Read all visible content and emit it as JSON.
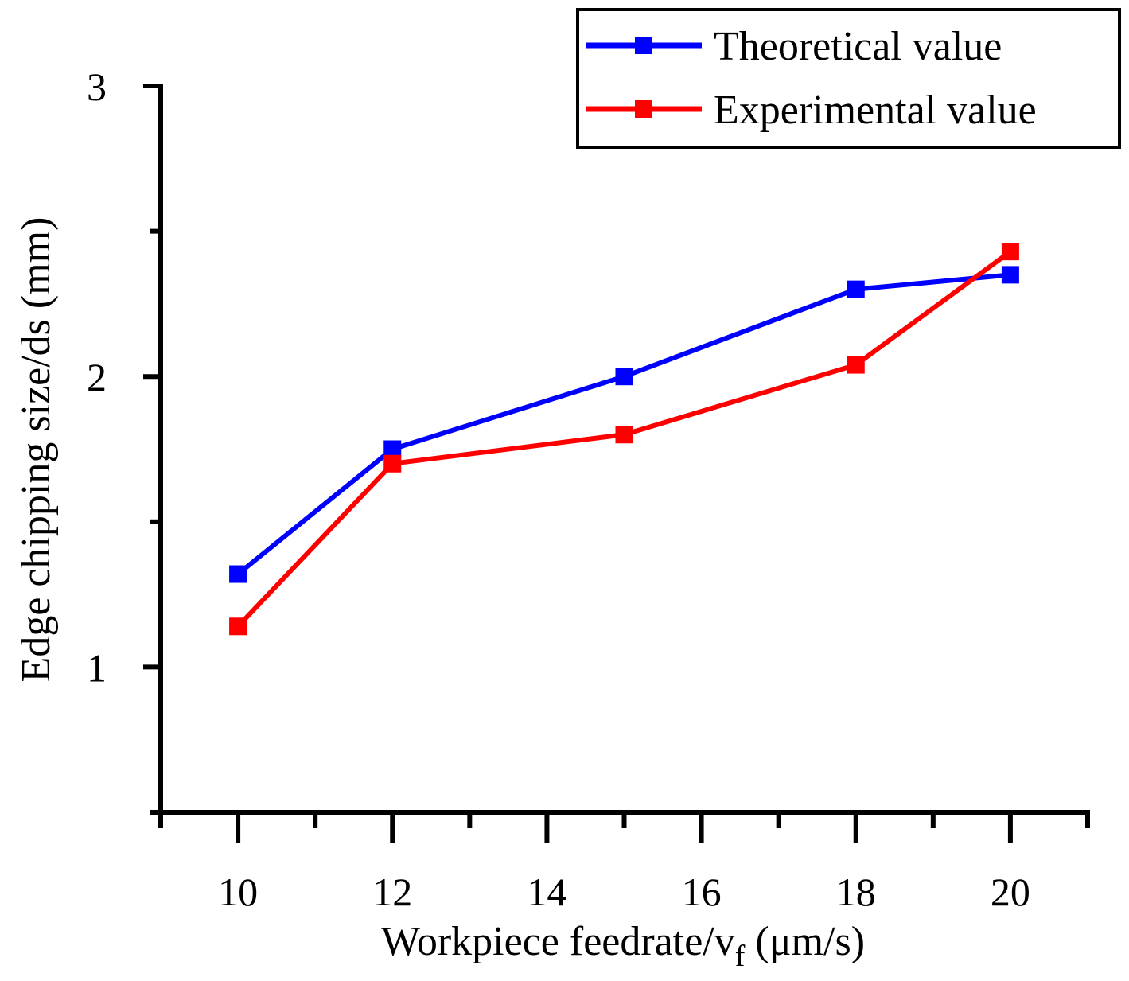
{
  "chart_data": {
    "type": "line",
    "title": "",
    "xlabel": "Workpiece feedrate/v",
    "xlabel_subscript": "f",
    "xlabel_unit": " (μm/s)",
    "ylabel": "Edge chipping size/ds (mm)",
    "xlim": [
      9,
      21
    ],
    "ylim": [
      0.5,
      3
    ],
    "x_ticks": [
      10,
      12,
      14,
      16,
      18,
      20
    ],
    "x_tick_labels": [
      "10",
      "12",
      "14",
      "16",
      "18",
      "20"
    ],
    "x_minor_ticks": [
      9,
      11,
      13,
      15,
      17,
      19,
      21
    ],
    "y_ticks": [
      1,
      2,
      3
    ],
    "y_tick_labels": [
      "1",
      "2",
      "3"
    ],
    "y_minor_ticks": [
      0.5,
      1.5,
      2.5
    ],
    "grid": false,
    "legend_position": "top-right",
    "series": [
      {
        "name": "Theoretical value",
        "color": "#0000ff",
        "marker": "square",
        "x": [
          10,
          12,
          15,
          18,
          20
        ],
        "y": [
          1.32,
          1.75,
          2.0,
          2.3,
          2.35
        ]
      },
      {
        "name": "Experimental value",
        "color": "#ff0000",
        "marker": "square",
        "x": [
          10,
          12,
          15,
          18,
          20
        ],
        "y": [
          1.14,
          1.7,
          1.8,
          2.04,
          2.43
        ]
      }
    ]
  }
}
